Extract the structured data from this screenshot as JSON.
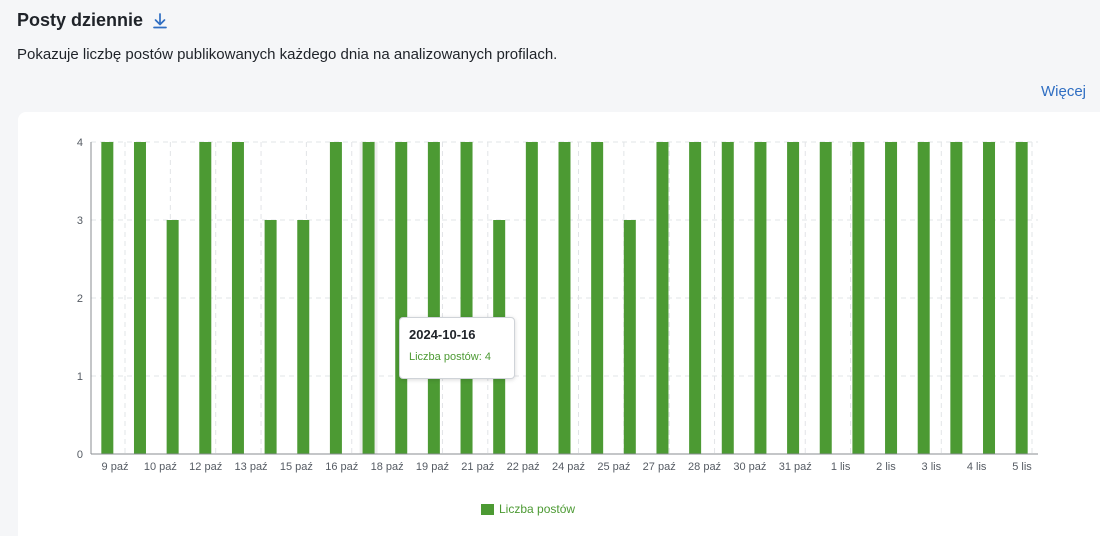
{
  "header": {
    "title": "Posty dziennie",
    "description": "Pokazuje liczbę postów publikowanych każdego dnia na analizowanych profilach.",
    "more_link": "Więcej"
  },
  "tooltip": {
    "date": "2024-10-16",
    "label": "Liczba postów: 4"
  },
  "colors": {
    "bar": "#4c9a33",
    "link": "#2f6ec2",
    "grid": "#e2e4e7"
  },
  "chart_data": {
    "type": "bar",
    "dates": [
      "2024-10-08",
      "2024-10-09",
      "2024-10-10",
      "2024-10-11",
      "2024-10-12",
      "2024-10-13",
      "2024-10-14",
      "2024-10-15",
      "2024-10-16",
      "2024-10-17",
      "2024-10-18",
      "2024-10-19",
      "2024-10-20",
      "2024-10-21",
      "2024-10-22",
      "2024-10-23",
      "2024-10-24",
      "2024-10-25",
      "2024-10-26",
      "2024-10-27",
      "2024-10-28",
      "2024-10-29",
      "2024-10-30",
      "2024-10-31",
      "2024-11-01",
      "2024-11-02",
      "2024-11-03",
      "2024-11-04",
      "2024-11-05"
    ],
    "values": [
      4,
      4,
      3,
      4,
      4,
      3,
      3,
      4,
      4,
      4,
      4,
      4,
      3,
      4,
      4,
      4,
      3,
      4,
      4,
      4,
      4,
      4,
      4,
      4,
      4,
      4,
      4,
      4,
      4
    ],
    "x_tick_labels": [
      "9 paź",
      "10 paź",
      "12 paź",
      "13 paź",
      "15 paź",
      "16 paź",
      "18 paź",
      "19 paź",
      "21 paź",
      "22 paź",
      "24 paź",
      "25 paź",
      "27 paź",
      "28 paź",
      "30 paź",
      "31 paź",
      "1 lis",
      "2 lis",
      "3 lis",
      "4 lis",
      "5 lis"
    ],
    "y_ticks": [
      0,
      1,
      2,
      3,
      4
    ],
    "ylim": [
      0,
      4
    ],
    "highlighted_date": "2024-10-16",
    "series": [
      {
        "name": "Liczba postów"
      }
    ],
    "legend_position": "bottom-center",
    "grid": true
  }
}
